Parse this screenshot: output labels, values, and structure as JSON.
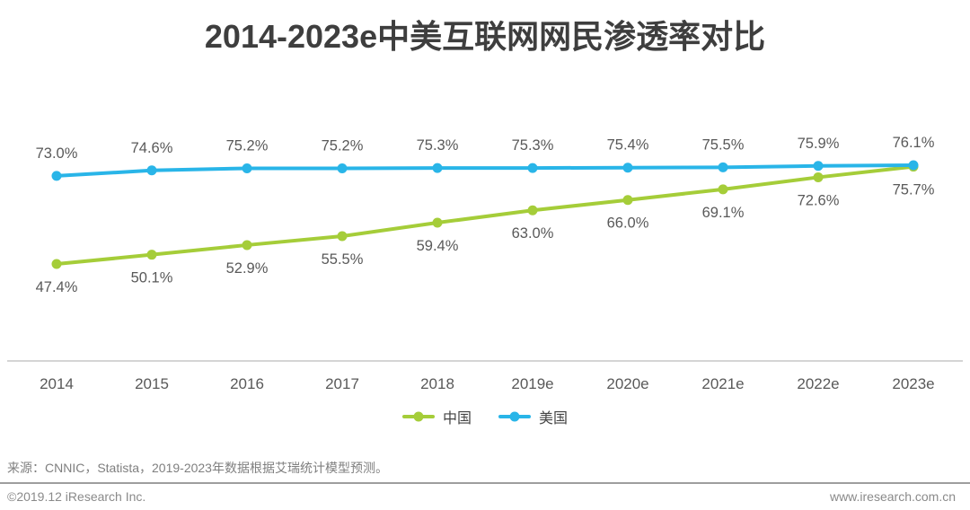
{
  "chart_data": {
    "type": "line",
    "title": "2014-2023e中美互联网网民渗透率对比",
    "categories": [
      "2014",
      "2015",
      "2016",
      "2017",
      "2018",
      "2019e",
      "2020e",
      "2021e",
      "2022e",
      "2023e"
    ],
    "series": [
      {
        "name": "中国",
        "color": "#a5cd39",
        "label_position": "below",
        "values": [
          47.4,
          50.1,
          52.9,
          55.5,
          59.4,
          63.0,
          66.0,
          69.1,
          72.6,
          75.7
        ]
      },
      {
        "name": "美国",
        "color": "#29b5e8",
        "label_position": "above",
        "values": [
          73.0,
          74.6,
          75.2,
          75.2,
          75.3,
          75.3,
          75.4,
          75.5,
          75.9,
          76.1
        ]
      }
    ],
    "unit": "%",
    "ylim": [
      45,
      80
    ],
    "grid": false,
    "legend_position": "bottom",
    "data_labels": true
  },
  "colors": {
    "title_text": "#3e3e3e",
    "label_text": "#595959",
    "axis_line": "#ababab",
    "footer_text": "#8a8a8a"
  },
  "footer": {
    "source": "来源：CNNIC，Statista，2019-2023年数据根据艾瑞统计模型预测。",
    "copyright": "©2019.12 iResearch Inc.",
    "website": "www.iresearch.com.cn"
  }
}
